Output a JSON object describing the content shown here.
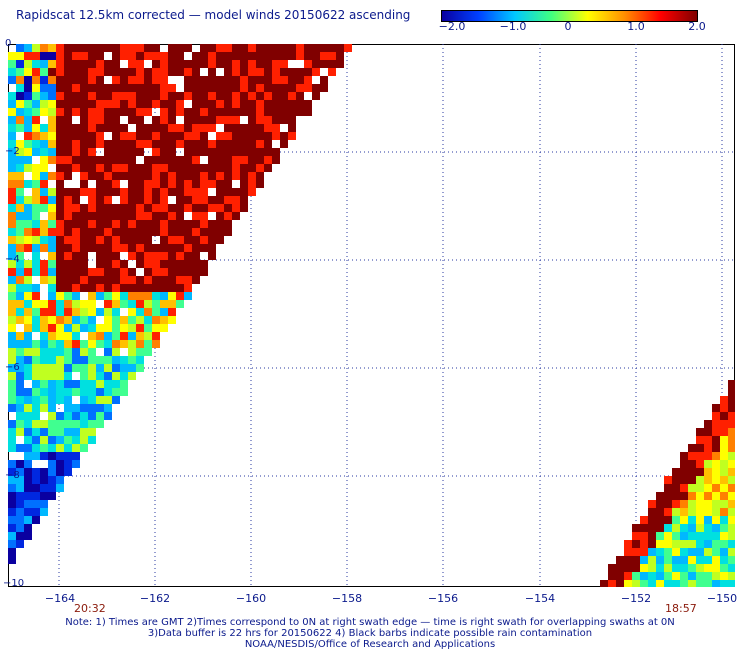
{
  "title": "Rapidscat 12.5km corrected — model winds 20150622 ascending",
  "colorbar": {
    "labels": [
      "−2.0",
      "−1.0",
      "0",
      "1.0",
      "2.0"
    ],
    "colors": [
      "#0a00a0",
      "#0040ff",
      "#00c8ff",
      "#40ff80",
      "#ffff00",
      "#ff9000",
      "#ff0000",
      "#800000"
    ]
  },
  "map": {
    "lon_range": [
      -165,
      -150
    ],
    "lat_range": [
      -10,
      0
    ],
    "y_tick_labels": [
      "0",
      "−2",
      "−4",
      "−6",
      "−8",
      "−10"
    ],
    "x_tick_labels": [
      "−164",
      "−162",
      "−160",
      "−158",
      "−156",
      "−154",
      "−152",
      "−150"
    ],
    "time_left": "20:32",
    "time_right": "18:57"
  },
  "notes": {
    "line1": "Note: 1) Times are GMT 2)Times correspond to 0N at right swath edge — time is right swath for overlapping swaths at 0N",
    "line2": "3)Data buffer is 22 hrs for 20150622 4) Black barbs indicate possible rain contamination",
    "line3": "NOAA/NESDIS/Office of Research and Applications"
  }
}
